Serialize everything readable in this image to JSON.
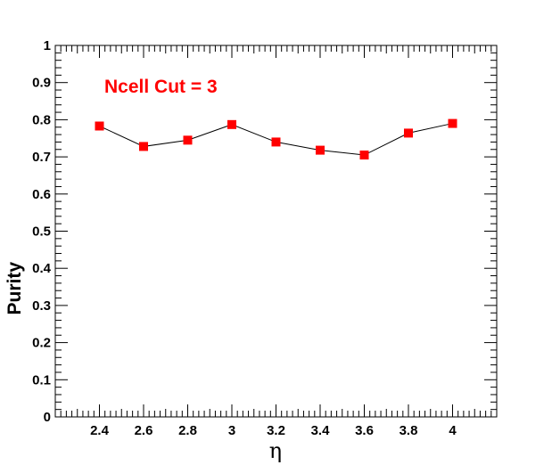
{
  "chart_data": {
    "type": "line",
    "xlabel": "η",
    "ylabel": "Purity",
    "annotation": "Ncell Cut = 3",
    "xlim": [
      2.2,
      4.2
    ],
    "ylim": [
      0,
      1
    ],
    "x_ticks": [
      "2.4",
      "2.6",
      "2.8",
      "3",
      "3.2",
      "3.4",
      "3.6",
      "3.8",
      "4"
    ],
    "y_ticks": [
      "0",
      "0.1",
      "0.2",
      "0.3",
      "0.4",
      "0.5",
      "0.6",
      "0.7",
      "0.8",
      "0.9",
      "1"
    ],
    "grid": false,
    "series": [
      {
        "x": [
          2.4,
          2.6,
          2.8,
          3.0,
          3.2,
          3.4,
          3.6,
          3.8,
          4.0
        ],
        "y": [
          0.783,
          0.728,
          0.745,
          0.787,
          0.74,
          0.718,
          0.705,
          0.764,
          0.79
        ]
      }
    ],
    "colors": {
      "marker": "#ff0000",
      "line": "#000000",
      "annotation": "#ff0000"
    }
  }
}
